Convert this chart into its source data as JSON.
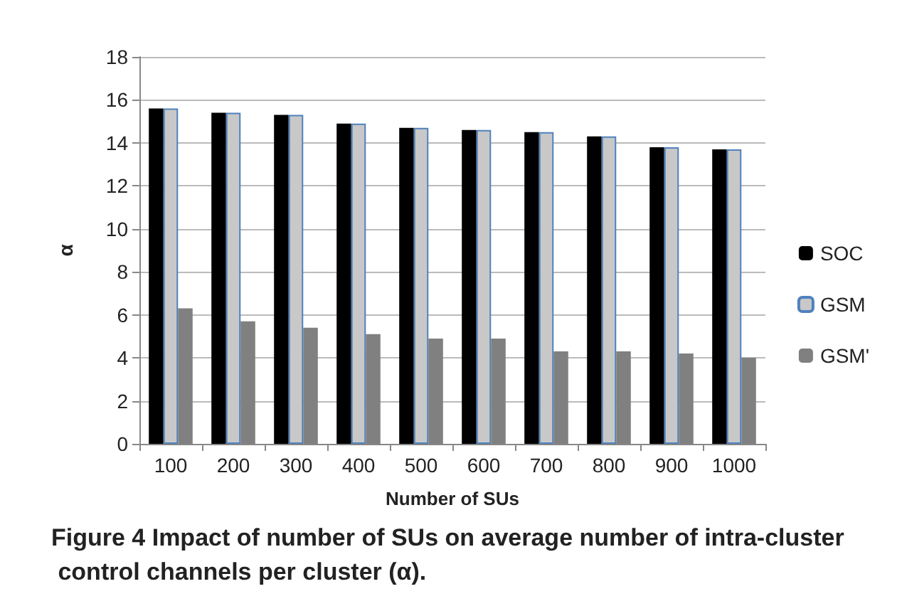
{
  "chart_data": {
    "type": "bar",
    "xlabel": "Number of SUs",
    "ylabel": "α",
    "categories": [
      "100",
      "200",
      "300",
      "400",
      "500",
      "600",
      "700",
      "800",
      "900",
      "1000"
    ],
    "series": [
      {
        "name": "SOC",
        "color": "#000000",
        "values": [
          15.6,
          15.4,
          15.3,
          14.9,
          14.7,
          14.6,
          14.5,
          14.3,
          13.8,
          13.7
        ]
      },
      {
        "name": "GSM",
        "color": "#c8c8c8",
        "values": [
          15.6,
          15.4,
          15.3,
          14.9,
          14.7,
          14.6,
          14.5,
          14.3,
          13.8,
          13.7
        ]
      },
      {
        "name": "GSM'",
        "color": "#808080",
        "values": [
          6.3,
          5.7,
          5.4,
          5.1,
          4.9,
          4.9,
          4.3,
          4.3,
          4.2,
          4.0
        ]
      }
    ],
    "ylim": [
      0,
      18
    ],
    "yticks": [
      0,
      2,
      4,
      6,
      8,
      10,
      12,
      14,
      16,
      18
    ],
    "grid": "y",
    "legend": "right",
    "annotations": [
      "Figure 4 Impact of number of SUs on average number of intra-cluster control channels per cluster (α)."
    ]
  }
}
